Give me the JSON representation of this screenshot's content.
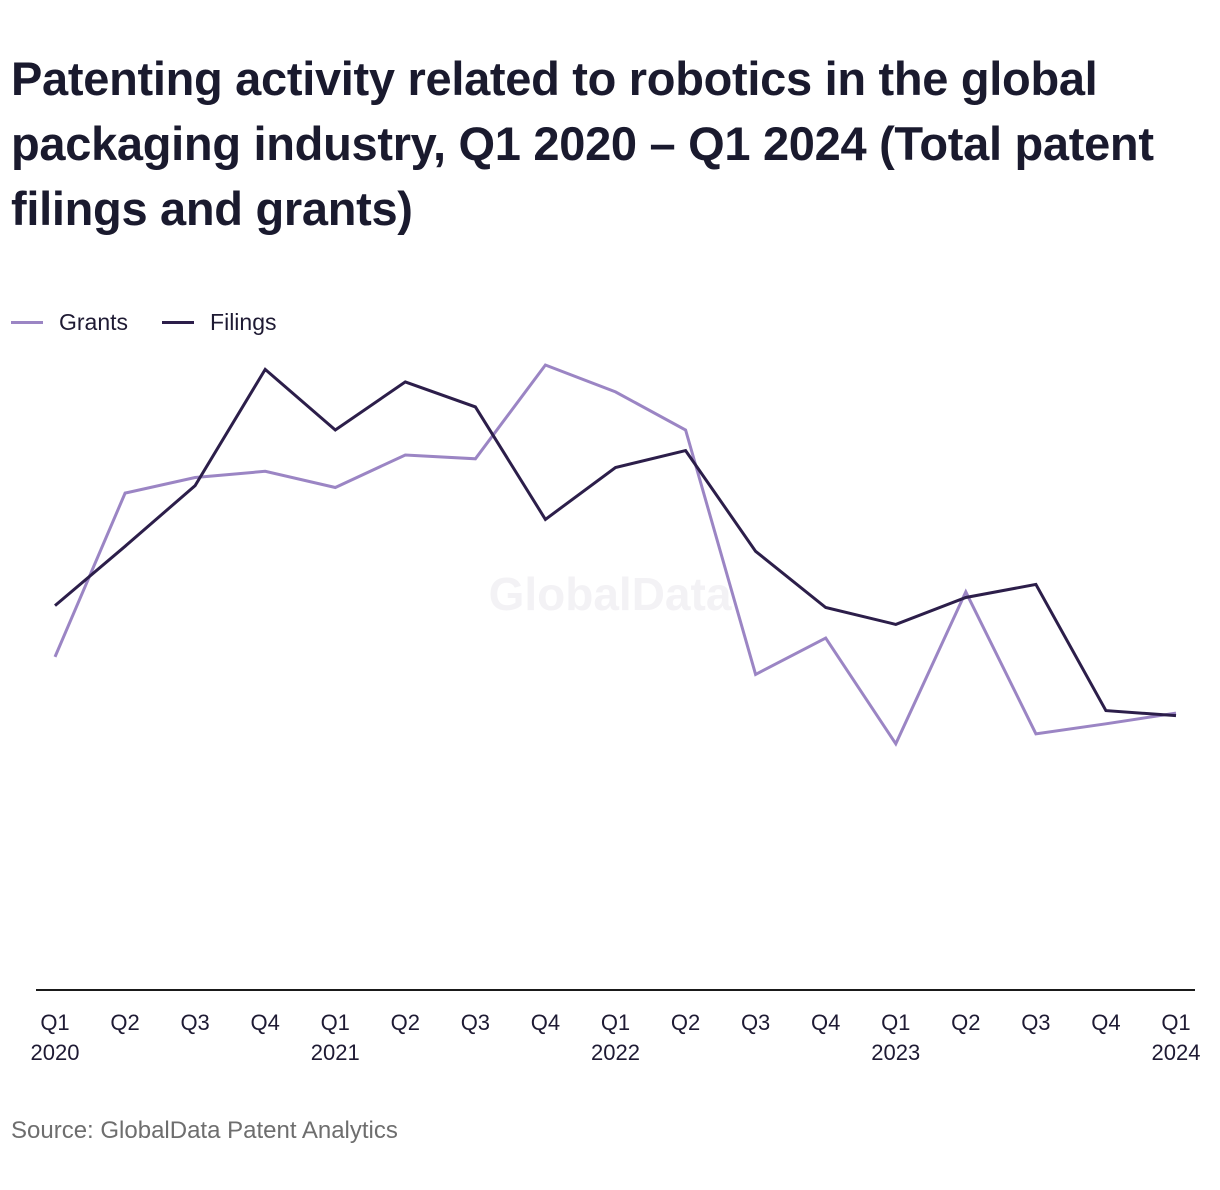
{
  "title": "Patenting activity related to robotics in the global packaging industry, Q1 2020 – Q1 2024 (Total patent filings and grants)",
  "source": "Source: GlobalData Patent Analytics",
  "watermark": "GlobalData",
  "colors": {
    "grants": "#9b85c4",
    "filings": "#2c1e4a",
    "axis": "#1a1a1a",
    "text": "#1e1a33",
    "watermark": "#f3f2f5"
  },
  "legend": [
    {
      "name": "Grants",
      "color": "#9b85c4"
    },
    {
      "name": "Filings",
      "color": "#2c1e4a"
    }
  ],
  "chart_data": {
    "type": "line",
    "title": "Patenting activity related to robotics in the global packaging industry, Q1 2020 – Q1 2024 (Total patent filings and grants)",
    "xlabel": "",
    "ylabel": "",
    "y_axis_shown": false,
    "grid": false,
    "legend_position": "top-left",
    "x_labels": [
      [
        "Q1",
        "2020"
      ],
      [
        "Q2",
        ""
      ],
      [
        "Q3",
        ""
      ],
      [
        "Q4",
        ""
      ],
      [
        "Q1",
        "2021"
      ],
      [
        "Q2",
        ""
      ],
      [
        "Q3",
        ""
      ],
      [
        "Q4",
        ""
      ],
      [
        "Q1",
        "2022"
      ],
      [
        "Q2",
        ""
      ],
      [
        "Q3",
        ""
      ],
      [
        "Q4",
        ""
      ],
      [
        "Q1",
        "2023"
      ],
      [
        "Q2",
        ""
      ],
      [
        "Q3",
        ""
      ],
      [
        "Q4",
        ""
      ],
      [
        "Q1",
        "2024"
      ]
    ],
    "ylim": [
      0,
      100
    ],
    "series": [
      {
        "name": "Grants",
        "color": "#9b85c4",
        "values": [
          52.5,
          78.7,
          81.2,
          82.2,
          79.6,
          84.8,
          84.2,
          99.2,
          94.9,
          88.8,
          49.7,
          55.5,
          38.6,
          62.9,
          40.2,
          41.8,
          43.5
        ]
      },
      {
        "name": "Filings",
        "color": "#2c1e4a",
        "values": [
          60.7,
          70.2,
          79.9,
          98.5,
          88.8,
          96.5,
          92.5,
          74.5,
          82.8,
          85.5,
          69.4,
          60.4,
          57.7,
          62.0,
          64.1,
          43.9,
          43.1
        ]
      }
    ]
  }
}
